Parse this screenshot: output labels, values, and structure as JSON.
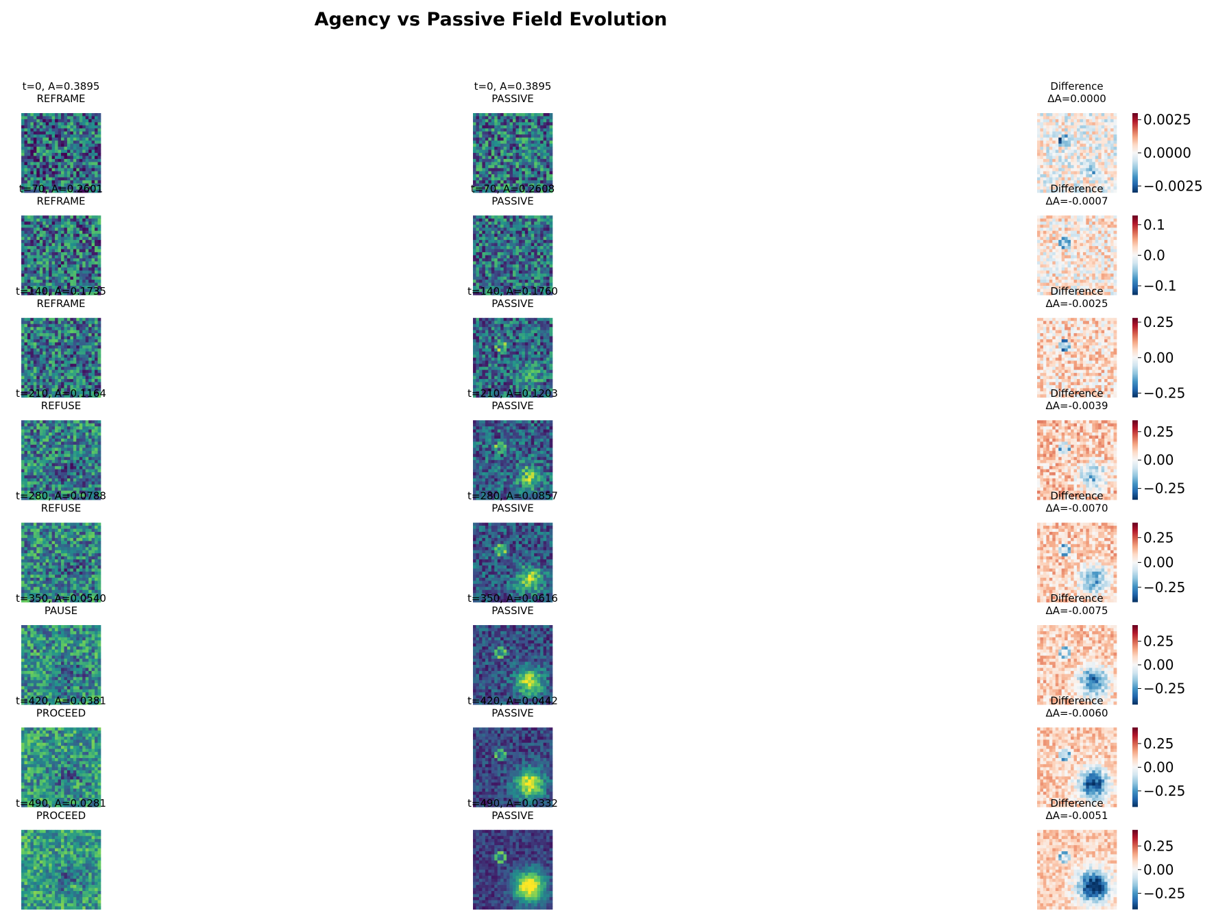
{
  "chart_data": {
    "type": "heatmap",
    "title": "Agency vs Passive Field Evolution",
    "columns": [
      "agency",
      "passive",
      "difference"
    ],
    "colormaps": {
      "field": [
        "#440154",
        "#3b528b",
        "#21918c",
        "#5ec962",
        "#fde725"
      ],
      "difference": [
        "#053061",
        "#2166ac",
        "#4393c3",
        "#92c5de",
        "#d1e5f0",
        "#f7f7f7",
        "#fddbc7",
        "#f4a582",
        "#d6604d",
        "#b2182b",
        "#67001f"
      ]
    },
    "rows": [
      {
        "agency_title": "t=0, A=0.3895",
        "agency_action": "REFRAME",
        "passive_title": "t=0, A=0.3895",
        "passive_label": "PASSIVE",
        "diff_title": "Difference",
        "diff_value": "ΔA=0.0000",
        "colorbar_ticks": [
          0.0025,
          0.0,
          -0.0025
        ],
        "colorbar_labels": [
          "0.0025",
          "0.0000",
          "−0.0025"
        ],
        "colorbar_range": [
          -0.003,
          0.003
        ]
      },
      {
        "agency_title": "t=70, A=0.2601",
        "agency_action": "REFRAME",
        "passive_title": "t=70, A=0.2608",
        "passive_label": "PASSIVE",
        "diff_title": "Difference",
        "diff_value": "ΔA=-0.0007",
        "colorbar_ticks": [
          0.1,
          0.0,
          -0.1
        ],
        "colorbar_labels": [
          "0.1",
          "0.0",
          "−0.1"
        ],
        "colorbar_range": [
          -0.13,
          0.13
        ]
      },
      {
        "agency_title": "t=140, A=0.1735",
        "agency_action": "REFRAME",
        "passive_title": "t=140, A=0.1760",
        "passive_label": "PASSIVE",
        "diff_title": "Difference",
        "diff_value": "ΔA=-0.0025",
        "colorbar_ticks": [
          0.25,
          0.0,
          -0.25
        ],
        "colorbar_labels": [
          "0.25",
          "0.00",
          "−0.25"
        ],
        "colorbar_range": [
          -0.28,
          0.28
        ]
      },
      {
        "agency_title": "t=210, A=0.1164",
        "agency_action": "REFUSE",
        "passive_title": "t=210, A=0.1203",
        "passive_label": "PASSIVE",
        "diff_title": "Difference",
        "diff_value": "ΔA=-0.0039",
        "colorbar_ticks": [
          0.25,
          0.0,
          -0.25
        ],
        "colorbar_labels": [
          "0.25",
          "0.00",
          "−0.25"
        ],
        "colorbar_range": [
          -0.35,
          0.35
        ]
      },
      {
        "agency_title": "t=280, A=0.0788",
        "agency_action": "REFUSE",
        "passive_title": "t=280, A=0.0857",
        "passive_label": "PASSIVE",
        "diff_title": "Difference",
        "diff_value": "ΔA=-0.0070",
        "colorbar_ticks": [
          0.25,
          0.0,
          -0.25
        ],
        "colorbar_labels": [
          "0.25",
          "0.00",
          "−0.25"
        ],
        "colorbar_range": [
          -0.4,
          0.4
        ]
      },
      {
        "agency_title": "t=350, A=0.0540",
        "agency_action": "PAUSE",
        "passive_title": "t=350, A=0.0616",
        "passive_label": "PASSIVE",
        "diff_title": "Difference",
        "diff_value": "ΔA=-0.0075",
        "colorbar_ticks": [
          0.25,
          0.0,
          -0.25
        ],
        "colorbar_labels": [
          "0.25",
          "0.00",
          "−0.25"
        ],
        "colorbar_range": [
          -0.42,
          0.42
        ]
      },
      {
        "agency_title": "t=420, A=0.0381",
        "agency_action": "PROCEED",
        "passive_title": "t=420, A=0.0442",
        "passive_label": "PASSIVE",
        "diff_title": "Difference",
        "diff_value": "ΔA=-0.0060",
        "colorbar_ticks": [
          0.25,
          0.0,
          -0.25
        ],
        "colorbar_labels": [
          "0.25",
          "0.00",
          "−0.25"
        ],
        "colorbar_range": [
          -0.42,
          0.42
        ]
      },
      {
        "agency_title": "t=490, A=0.0281",
        "agency_action": "PROCEED",
        "passive_title": "t=490, A=0.0332",
        "passive_label": "PASSIVE",
        "diff_title": "Difference",
        "diff_value": "ΔA=-0.0051",
        "colorbar_ticks": [
          0.25,
          0.0,
          -0.25
        ],
        "colorbar_labels": [
          "0.25",
          "0.00",
          "−0.25"
        ],
        "colorbar_range": [
          -0.42,
          0.42
        ]
      }
    ]
  }
}
